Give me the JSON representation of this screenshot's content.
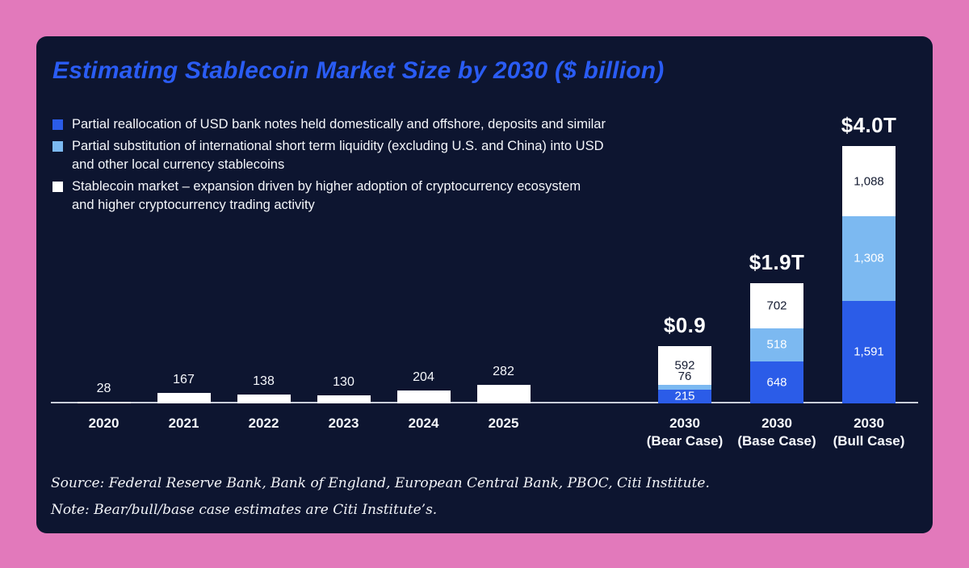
{
  "title": "Estimating Stablecoin Market Size by 2030 ($ billion)",
  "legend": {
    "items": [
      {
        "label": "Partial reallocation of USD bank notes held domestically and offshore, deposits and similar",
        "color": "#2b5ce8"
      },
      {
        "label": "Partial substitution of international short term liquidity (excluding U.S. and China) into USD\nand other local currency stablecoins",
        "color": "#7cb9f1"
      },
      {
        "label": "Stablecoin market – expansion driven by higher adoption of cryptocurrency ecosystem\nand higher cryptocurrency trading activity",
        "color": "#ffffff"
      }
    ]
  },
  "chart_data": {
    "type": "bar",
    "stacked": true,
    "unit": "$ billion",
    "title": "Estimating Stablecoin Market Size by 2030 ($ billion)",
    "xlabel": "",
    "ylabel": "",
    "ylim": [
      0,
      4100
    ],
    "grid": false,
    "legend_position": "top-left",
    "categories": [
      {
        "label": "2020"
      },
      {
        "label": "2021"
      },
      {
        "label": "2022"
      },
      {
        "label": "2023"
      },
      {
        "label": "2024"
      },
      {
        "label": "2025"
      },
      {
        "label": "2030",
        "sublabel": "(Bear Case)",
        "total": "$0.9"
      },
      {
        "label": "2030",
        "sublabel": "(Base Case)",
        "total": "$1.9T"
      },
      {
        "label": "2030",
        "sublabel": "(Bull Case)",
        "total": "$4.0T"
      }
    ],
    "series": [
      {
        "name": "Partial reallocation of USD bank notes held domestically and offshore, deposits and similar",
        "color": "#2b5ce8",
        "label_color": "#ffffff",
        "values": [
          0,
          0,
          0,
          0,
          0,
          0,
          215,
          648,
          1591
        ]
      },
      {
        "name": "Partial substitution of international short term liquidity (excluding U.S. and China) into USD and other local currency stablecoins",
        "color": "#7cb9f1",
        "label_color": "#ffffff",
        "values": [
          0,
          0,
          0,
          0,
          0,
          0,
          76,
          518,
          1308
        ]
      },
      {
        "name": "Stablecoin market – expansion driven by higher adoption of cryptocurrency ecosystem and higher cryptocurrency trading activity",
        "color": "#ffffff",
        "label_color": "#131a30",
        "values": [
          28,
          167,
          138,
          130,
          204,
          282,
          592,
          702,
          1088
        ]
      }
    ]
  },
  "footer": {
    "source": "Source: Federal Reserve Bank, Bank of England, European Central Bank, PBOC, Citi Institute.",
    "note": "Note: Bear/bull/base case estimates are Citi Institute’s."
  }
}
